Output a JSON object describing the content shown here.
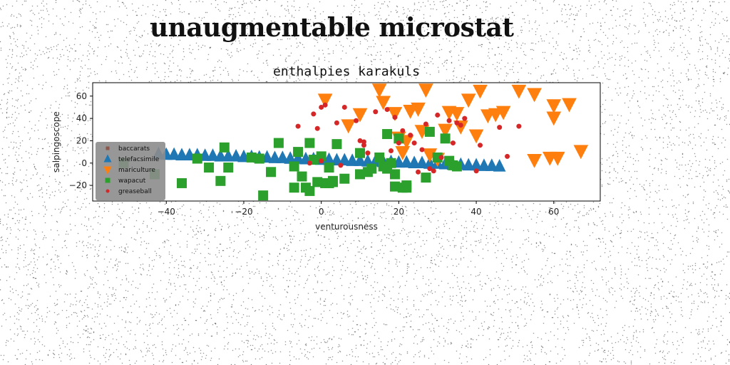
{
  "page": {
    "title": "unaugmentable microstat"
  },
  "chart_data": {
    "type": "scatter",
    "title": "enthalpies karakuls",
    "xlabel": "venturousness",
    "ylabel": "salpingoscope",
    "xlim": [
      -59,
      72
    ],
    "ylim": [
      -34,
      72
    ],
    "xticks": [
      -40,
      -20,
      0,
      20,
      40,
      60
    ],
    "yticks": [
      -20,
      0,
      20,
      40,
      60
    ],
    "grid": false,
    "legend_position": "lower-left",
    "series": [
      {
        "name": "baccarats",
        "color": "#8c564b",
        "marker": "square-small",
        "points": []
      },
      {
        "name": "telefacsimile",
        "color": "#1f77b4",
        "marker": "triangle-up",
        "points": [
          [
            -42,
            8
          ],
          [
            -40,
            7.5
          ],
          [
            -38,
            7.5
          ],
          [
            -36,
            7
          ],
          [
            -34,
            7
          ],
          [
            -32,
            7
          ],
          [
            -30,
            6.5
          ],
          [
            -28,
            6.5
          ],
          [
            -26,
            6
          ],
          [
            -24,
            6
          ],
          [
            -22,
            6
          ],
          [
            -20,
            5.5
          ],
          [
            -18,
            5.5
          ],
          [
            -16,
            5
          ],
          [
            -14,
            5
          ],
          [
            -12,
            4.5
          ],
          [
            -10,
            4.5
          ],
          [
            -8,
            4
          ],
          [
            -6,
            4
          ],
          [
            -4,
            3.5
          ],
          [
            -2,
            3.5
          ],
          [
            0,
            3
          ],
          [
            2,
            3
          ],
          [
            4,
            2.5
          ],
          [
            6,
            2.5
          ],
          [
            8,
            2
          ],
          [
            10,
            2
          ],
          [
            12,
            1.5
          ],
          [
            14,
            1.5
          ],
          [
            16,
            1
          ],
          [
            18,
            1
          ],
          [
            20,
            0.5
          ],
          [
            22,
            0.5
          ],
          [
            24,
            0
          ],
          [
            26,
            0
          ],
          [
            28,
            -0.5
          ],
          [
            30,
            -0.5
          ],
          [
            32,
            -1
          ],
          [
            34,
            -1.5
          ],
          [
            36,
            -1.5
          ],
          [
            38,
            -2
          ],
          [
            40,
            -2
          ],
          [
            42,
            -2.5
          ],
          [
            44,
            -2.5
          ],
          [
            46,
            -3
          ]
        ]
      },
      {
        "name": "mariculture",
        "color": "#ff7f0e",
        "marker": "triangle-down",
        "points": [
          [
            1,
            57
          ],
          [
            7,
            34
          ],
          [
            10,
            44
          ],
          [
            15,
            66
          ],
          [
            16,
            55
          ],
          [
            19,
            45
          ],
          [
            20,
            23
          ],
          [
            21,
            10
          ],
          [
            22,
            20
          ],
          [
            23,
            47
          ],
          [
            25,
            49
          ],
          [
            26,
            29
          ],
          [
            27,
            66
          ],
          [
            28,
            8
          ],
          [
            30,
            4
          ],
          [
            32,
            30
          ],
          [
            33,
            46
          ],
          [
            35,
            45
          ],
          [
            36,
            33
          ],
          [
            38,
            57
          ],
          [
            40,
            25
          ],
          [
            41,
            65
          ],
          [
            43,
            43
          ],
          [
            45,
            44
          ],
          [
            47,
            46
          ],
          [
            51,
            65
          ],
          [
            55,
            62
          ],
          [
            55,
            3
          ],
          [
            59,
            5
          ],
          [
            60,
            52
          ],
          [
            60,
            41
          ],
          [
            61,
            5
          ],
          [
            64,
            53
          ],
          [
            67,
            11
          ]
        ]
      },
      {
        "name": "wapacut",
        "color": "#2ca02c",
        "marker": "square",
        "points": [
          [
            -51,
            0
          ],
          [
            -43,
            -10
          ],
          [
            -36,
            -18
          ],
          [
            -32,
            4
          ],
          [
            -29,
            -4
          ],
          [
            -26,
            -16
          ],
          [
            -25,
            14
          ],
          [
            -24,
            -4
          ],
          [
            -18,
            5
          ],
          [
            -16,
            4
          ],
          [
            -15,
            -29
          ],
          [
            -13,
            -8
          ],
          [
            -11,
            18
          ],
          [
            -7,
            -3
          ],
          [
            -7,
            -22
          ],
          [
            -6,
            10
          ],
          [
            -5,
            -12
          ],
          [
            -4,
            -22
          ],
          [
            -3,
            18
          ],
          [
            -3,
            -25
          ],
          [
            -2,
            3
          ],
          [
            -1,
            -17
          ],
          [
            0,
            6
          ],
          [
            1,
            -18
          ],
          [
            2,
            -4
          ],
          [
            2,
            -18
          ],
          [
            3,
            -17
          ],
          [
            3,
            -16
          ],
          [
            4,
            17
          ],
          [
            6,
            -14
          ],
          [
            10,
            9
          ],
          [
            10,
            -10
          ],
          [
            12,
            -8
          ],
          [
            13,
            -5
          ],
          [
            15,
            5
          ],
          [
            16,
            -3
          ],
          [
            17,
            26
          ],
          [
            17,
            -5
          ],
          [
            18,
            0
          ],
          [
            19,
            -10
          ],
          [
            19,
            -21
          ],
          [
            20,
            22
          ],
          [
            21,
            -22
          ],
          [
            22,
            -22
          ],
          [
            22,
            -20
          ],
          [
            27,
            -13
          ],
          [
            28,
            28
          ],
          [
            30,
            5
          ],
          [
            32,
            22
          ],
          [
            33,
            2
          ],
          [
            34,
            -2
          ],
          [
            35,
            -3
          ]
        ]
      },
      {
        "name": "greaseball",
        "color": "#d62728",
        "marker": "circle",
        "points": [
          [
            -6,
            33
          ],
          [
            -2,
            44
          ],
          [
            -1,
            31
          ],
          [
            0,
            50
          ],
          [
            1,
            52
          ],
          [
            4,
            36
          ],
          [
            6,
            50
          ],
          [
            9,
            38
          ],
          [
            10,
            20
          ],
          [
            11,
            19
          ],
          [
            11,
            16
          ],
          [
            12,
            9
          ],
          [
            14,
            46
          ],
          [
            17,
            48
          ],
          [
            18,
            11
          ],
          [
            19,
            41
          ],
          [
            20,
            18
          ],
          [
            21,
            29
          ],
          [
            23,
            25
          ],
          [
            24,
            18
          ],
          [
            25,
            -8
          ],
          [
            26,
            12
          ],
          [
            27,
            35
          ],
          [
            28,
            -5
          ],
          [
            29,
            -7
          ],
          [
            30,
            43
          ],
          [
            31,
            5
          ],
          [
            33,
            38
          ],
          [
            34,
            18
          ],
          [
            35,
            36
          ],
          [
            36,
            34
          ],
          [
            37,
            40
          ],
          [
            40,
            -7
          ],
          [
            41,
            16
          ],
          [
            46,
            32
          ],
          [
            48,
            6
          ],
          [
            51,
            33
          ],
          [
            -3,
            0
          ],
          [
            0,
            2
          ],
          [
            5,
            -2
          ]
        ]
      }
    ]
  }
}
